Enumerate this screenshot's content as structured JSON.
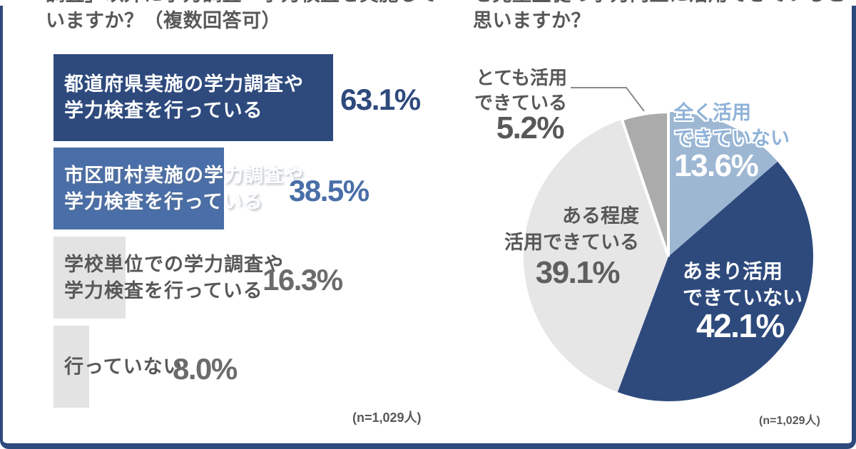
{
  "page": {
    "background": "#ffffff",
    "frame_color": "#2e4a7d"
  },
  "left_chart": {
    "title": "調査」以外に学力調査・学力検査を実施して\nいますか？（複数回答可）",
    "n_label": "(n=1,029人)"
  },
  "right_chart": {
    "title": "を児童生徒の学力向上に活用できていると\n思いますか？",
    "n_label": "(n=1,029人)"
  },
  "chart_data": [
    {
      "type": "bar",
      "orientation": "horizontal",
      "title": "調査」以外に学力調査・学力検査を実施していますか？（複数回答可）",
      "note": "(n=1,029人)",
      "categories": [
        "都道府県実施の学力調査や\n学力検査を行っている",
        "市区町村実施の学力調査や\n学力検査を行っている",
        "学校単位での学力調査や\n学力検査を行っている",
        "行っていない"
      ],
      "values": [
        63.1,
        38.5,
        16.3,
        8.0
      ],
      "value_labels": [
        "63.1%",
        "38.5%",
        "16.3%",
        "8.0%"
      ],
      "bar_colors": [
        "#2e4a7d",
        "#4a6fa8",
        "#e3e3e3",
        "#e3e3e3"
      ],
      "value_colors": [
        "#2e4a7d",
        "#4a6fa8",
        "#6b6b6b",
        "#6b6b6b"
      ],
      "xlim": [
        0,
        100
      ],
      "grid": false,
      "legend": "none"
    },
    {
      "type": "pie",
      "title": "を児童生徒の学力向上に活用できていると思いますか？",
      "note": "(n=1,029人)",
      "start_angle_deg": 0,
      "direction": "clockwise",
      "slices": [
        {
          "label": "全く活用\nできていない",
          "value": 13.6,
          "value_label": "13.6%",
          "color": "#9db7d3"
        },
        {
          "label": "あまり活用\nできていない",
          "value": 42.1,
          "value_label": "42.1%",
          "color": "#2e4a7d"
        },
        {
          "label": "ある程度\n活用できている",
          "value": 39.1,
          "value_label": "39.1%",
          "color": "#e6e6e6"
        },
        {
          "label": "とても活用\nできている",
          "value": 5.2,
          "value_label": "5.2%",
          "color": "#ababab"
        }
      ],
      "legend": "none"
    }
  ]
}
